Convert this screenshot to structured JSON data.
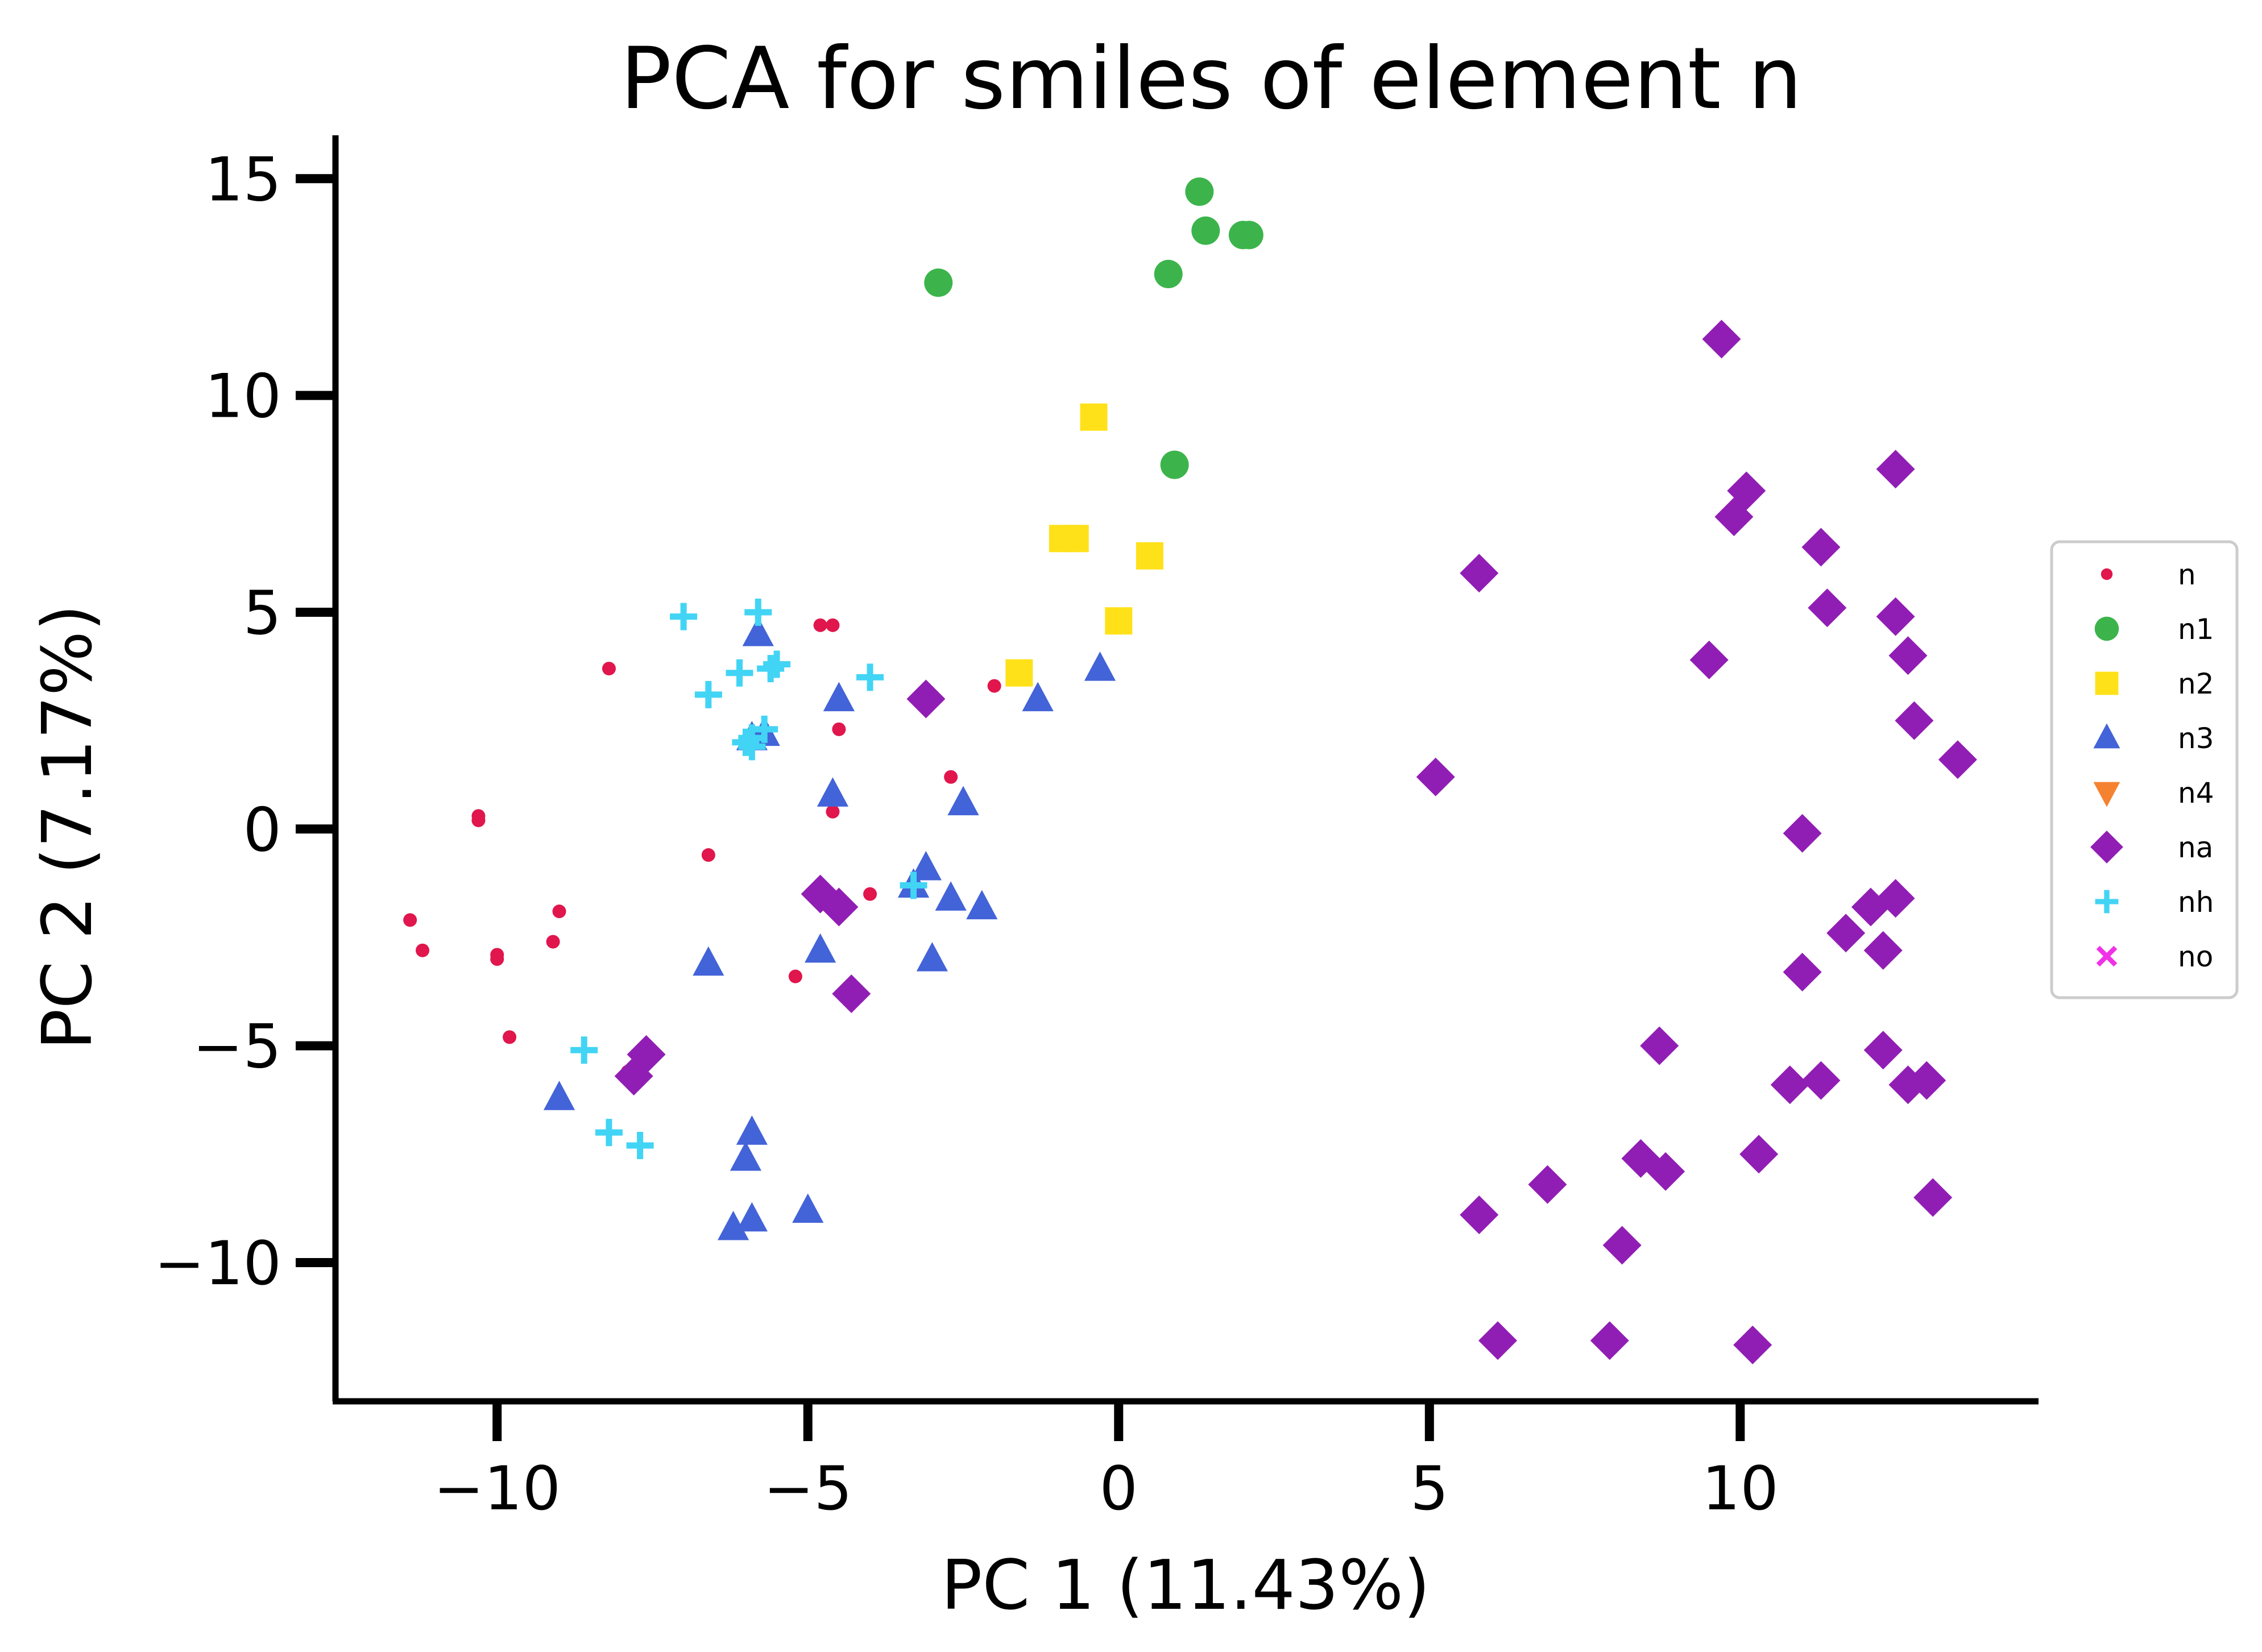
{
  "chart_data": {
    "type": "scatter",
    "title": "PCA for smiles of element n",
    "xlabel": "PC 1 (11.43%)",
    "ylabel": "PC 2 (7.17%)",
    "xlim": [
      -12.6,
      14.8
    ],
    "ylim": [
      -13.2,
      16.0
    ],
    "xticks": [
      -10,
      -5,
      0,
      5,
      10
    ],
    "yticks": [
      -10,
      -5,
      0,
      5,
      10,
      15
    ],
    "xtick_labels": [
      "−10",
      "−5",
      "0",
      "5",
      "10"
    ],
    "ytick_labels": [
      "−10",
      "−5",
      "0",
      "5",
      "10",
      "15"
    ],
    "grid": false,
    "legend_position": "right",
    "series": [
      {
        "name": "n",
        "marker": "point",
        "color": "#e0164c",
        "points": [
          [
            -11.4,
            -2.1
          ],
          [
            -11.2,
            -2.8
          ],
          [
            -10.3,
            0.3
          ],
          [
            -10.3,
            0.2
          ],
          [
            -10.0,
            -2.9
          ],
          [
            -10.0,
            -3.0
          ],
          [
            -9.8,
            -4.8
          ],
          [
            -9.0,
            -1.9
          ],
          [
            -9.1,
            -2.6
          ],
          [
            -8.2,
            3.7
          ],
          [
            -7.9,
            -5.6
          ],
          [
            -6.6,
            -0.6
          ],
          [
            -4.8,
            4.7
          ],
          [
            -4.6,
            4.7
          ],
          [
            -4.6,
            0.4
          ],
          [
            -4.5,
            2.3
          ],
          [
            -4.8,
            -2.8
          ],
          [
            -5.2,
            -3.4
          ],
          [
            -4.0,
            -1.5
          ],
          [
            -2.7,
            1.2
          ],
          [
            -2.0,
            3.3
          ]
        ]
      },
      {
        "name": "n1",
        "marker": "circle",
        "color": "#3cb44b",
        "points": [
          [
            -2.9,
            12.6
          ],
          [
            1.3,
            14.7
          ],
          [
            1.4,
            13.8
          ],
          [
            2.0,
            13.7
          ],
          [
            2.1,
            13.7
          ],
          [
            0.8,
            12.8
          ],
          [
            0.9,
            8.4
          ]
        ]
      },
      {
        "name": "n2",
        "marker": "square",
        "color": "#ffe119",
        "points": [
          [
            -0.4,
            9.5
          ],
          [
            -0.9,
            6.7
          ],
          [
            -0.7,
            6.7
          ],
          [
            0.5,
            6.3
          ],
          [
            0.0,
            4.8
          ],
          [
            -1.6,
            3.6
          ]
        ]
      },
      {
        "name": "n3",
        "marker": "triangle-up",
        "color": "#4363d8",
        "points": [
          [
            -5.8,
            4.5
          ],
          [
            -4.5,
            3.0
          ],
          [
            -1.3,
            3.0
          ],
          [
            -0.3,
            3.7
          ],
          [
            -5.9,
            2.1
          ],
          [
            -5.7,
            2.2
          ],
          [
            -4.6,
            0.8
          ],
          [
            -2.5,
            0.6
          ],
          [
            -3.1,
            -0.9
          ],
          [
            -3.3,
            -1.3
          ],
          [
            -2.7,
            -1.6
          ],
          [
            -2.2,
            -1.8
          ],
          [
            -6.6,
            -3.1
          ],
          [
            -4.8,
            -2.8
          ],
          [
            -3.0,
            -3.0
          ],
          [
            -9.0,
            -6.2
          ],
          [
            -5.9,
            -7.0
          ],
          [
            -6.0,
            -7.6
          ],
          [
            -6.2,
            -9.2
          ],
          [
            -5.9,
            -9.0
          ],
          [
            -5.0,
            -8.8
          ]
        ]
      },
      {
        "name": "n4",
        "marker": "triangle-down",
        "color": "#f58231",
        "points": []
      },
      {
        "name": "na",
        "marker": "diamond",
        "color": "#911eb4",
        "points": [
          [
            -3.1,
            3.0
          ],
          [
            -4.8,
            -1.5
          ],
          [
            -4.5,
            -1.8
          ],
          [
            -4.3,
            -3.8
          ],
          [
            -7.6,
            -5.2
          ],
          [
            -7.8,
            -5.7
          ],
          [
            9.7,
            11.3
          ],
          [
            10.1,
            7.8
          ],
          [
            9.9,
            7.2
          ],
          [
            12.5,
            8.3
          ],
          [
            5.8,
            5.9
          ],
          [
            11.3,
            6.5
          ],
          [
            11.4,
            5.1
          ],
          [
            12.5,
            4.9
          ],
          [
            9.5,
            3.9
          ],
          [
            12.7,
            4.0
          ],
          [
            12.8,
            2.5
          ],
          [
            13.5,
            1.6
          ],
          [
            5.1,
            1.2
          ],
          [
            11.0,
            -0.1
          ],
          [
            12.1,
            -1.8
          ],
          [
            12.5,
            -1.6
          ],
          [
            11.7,
            -2.4
          ],
          [
            12.3,
            -2.8
          ],
          [
            11.0,
            -3.3
          ],
          [
            8.7,
            -5.0
          ],
          [
            12.3,
            -5.1
          ],
          [
            10.8,
            -5.9
          ],
          [
            11.3,
            -5.8
          ],
          [
            12.7,
            -5.9
          ],
          [
            13.0,
            -5.8
          ],
          [
            10.3,
            -7.5
          ],
          [
            8.4,
            -7.6
          ],
          [
            8.8,
            -7.9
          ],
          [
            6.9,
            -8.2
          ],
          [
            5.8,
            -8.9
          ],
          [
            13.1,
            -8.5
          ],
          [
            8.1,
            -9.6
          ],
          [
            6.1,
            -11.8
          ],
          [
            7.9,
            -11.8
          ],
          [
            10.2,
            -11.9
          ]
        ]
      },
      {
        "name": "nh",
        "marker": "plus",
        "color": "#42d4f4",
        "points": [
          [
            -7.0,
            4.9
          ],
          [
            -5.8,
            5.0
          ],
          [
            -6.1,
            3.6
          ],
          [
            -5.5,
            3.8
          ],
          [
            -5.6,
            3.7
          ],
          [
            -4.0,
            3.5
          ],
          [
            -6.6,
            3.1
          ],
          [
            -5.9,
            2.1
          ],
          [
            -5.7,
            2.3
          ],
          [
            -5.9,
            1.9
          ],
          [
            -6.0,
            2.0
          ],
          [
            -3.3,
            -1.3
          ],
          [
            -8.6,
            -5.1
          ],
          [
            -8.2,
            -7.0
          ],
          [
            -7.7,
            -7.3
          ]
        ]
      },
      {
        "name": "no",
        "marker": "x",
        "color": "#f032e6",
        "points": []
      }
    ]
  }
}
